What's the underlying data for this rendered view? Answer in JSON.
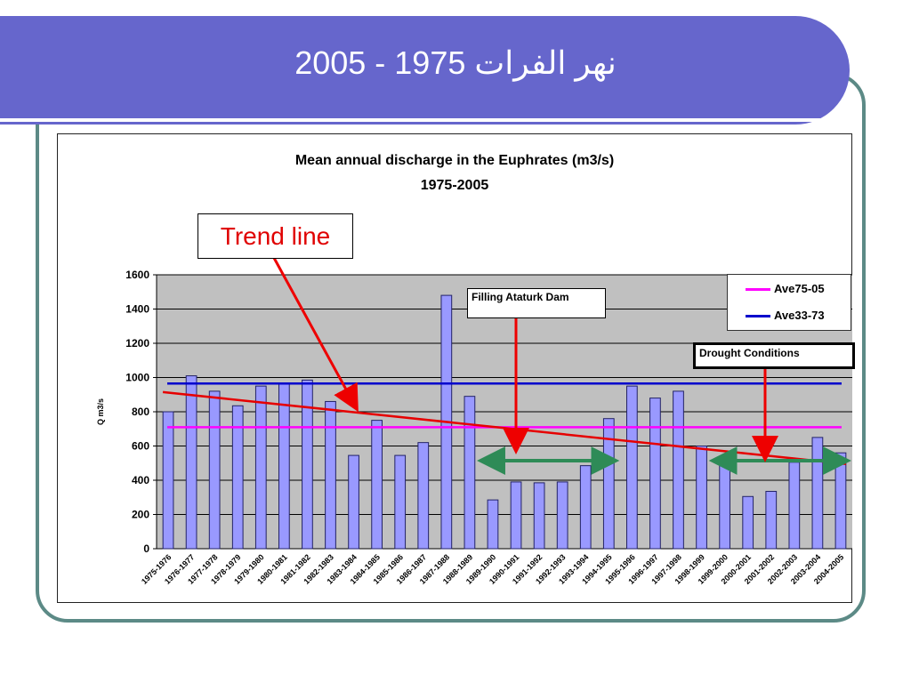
{
  "slide": {
    "title": "نهر الفرات 1975 - 2005"
  },
  "annotations": {
    "trend_line": "Trend line",
    "filling_dam": "Filling Ataturk Dam",
    "drought": "Drought Conditions"
  },
  "colors": {
    "title_bar": "#6666cc",
    "frame": "#5c8a86",
    "plot_bg": "#c0c0c0",
    "bar_fill": "#9999ff",
    "bar_stroke": "#222266",
    "trend": "#e60000",
    "ave75": "#ff00ff",
    "ave33": "#0000cc",
    "period_arrow": "#2e8b57",
    "callout_arrow": "#ee0000"
  },
  "chart_data": {
    "type": "bar",
    "title": "Mean annual discharge in the Euphrates (m3/s)",
    "subtitle": "1975-2005",
    "xlabel": "",
    "ylabel": "Q m3/s",
    "ylim": [
      0,
      1600
    ],
    "yticks": [
      0,
      200,
      400,
      600,
      800,
      1000,
      1200,
      1400,
      1600
    ],
    "grid": true,
    "legend_position": "top-right",
    "categories": [
      "1975-1976",
      "1976-1977",
      "1977-1978",
      "1978-1979",
      "1979-1980",
      "1980-1981",
      "1981-1982",
      "1982-1983",
      "1983-1984",
      "1984-1985",
      "1985-1986",
      "1986-1987",
      "1987-1988",
      "1988-1989",
      "1989-1990",
      "1990-1991",
      "1991-1992",
      "1992-1993",
      "1993-1994",
      "1994-1995",
      "1995-1996",
      "1996-1997",
      "1997-1998",
      "1998-1999",
      "1999-2000",
      "2000-2001",
      "2001-2002",
      "2002-2003",
      "2003-2004",
      "2004-2005"
    ],
    "values": [
      800,
      1010,
      920,
      835,
      950,
      965,
      985,
      860,
      545,
      750,
      545,
      620,
      1480,
      890,
      285,
      390,
      385,
      390,
      485,
      760,
      950,
      880,
      920,
      600,
      540,
      305,
      335,
      505,
      650,
      560
    ],
    "reference_lines": [
      {
        "name": "Ave75-05",
        "value": 710
      },
      {
        "name": "Ave33-73",
        "value": 965
      }
    ],
    "trend_line": {
      "start": 915,
      "end": 495
    },
    "periods": [
      {
        "label": "Filling Ataturk Dam",
        "from": "1989-1990",
        "to": "1994-1995"
      },
      {
        "label": "Drought Conditions",
        "from": "1999-2000",
        "to": "2004-2005"
      }
    ]
  }
}
